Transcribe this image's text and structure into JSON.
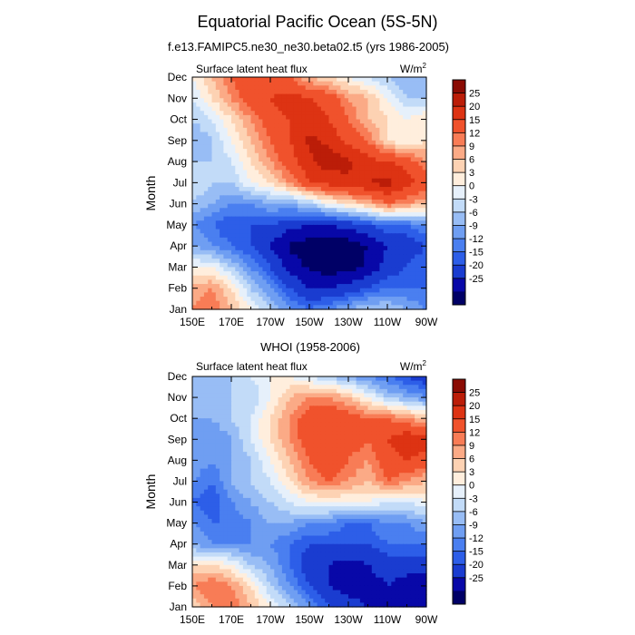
{
  "figure": {
    "title": "Equatorial Pacific Ocean (5S-5N)"
  },
  "colors": {
    "palette": [
      "#000066",
      "#0808a8",
      "#1a3cd0",
      "#2d5ee8",
      "#4a7ff0",
      "#6f9ef2",
      "#98bdf5",
      "#c2dbf8",
      "#e6f0fb",
      "#ffeedd",
      "#fdd2b3",
      "#fbaa86",
      "#f87c56",
      "#f0522c",
      "#dd3313",
      "#bb1d08",
      "#8a0b03"
    ],
    "frame": "#000000",
    "background": "#ffffff"
  },
  "chart_data": [
    {
      "type": "heatmap",
      "title": "f.e13.FAMIPC5.ne30_ne30.beta02.t5 (yrs 1986-2005)",
      "subtitle_left": "Surface latent heat flux",
      "units_base": "W/m",
      "units_sup": "2",
      "xlabel": "",
      "ylabel": "Month",
      "x_ticks": [
        "150E",
        "170E",
        "170W",
        "150W",
        "130W",
        "110W",
        "90W"
      ],
      "x_range": [
        150,
        270
      ],
      "y_ticks": [
        "Jan",
        "Feb",
        "Mar",
        "Apr",
        "May",
        "Jun",
        "Jul",
        "Aug",
        "Sep",
        "Oct",
        "Nov",
        "Dec"
      ],
      "colorbar_labels": [
        "25",
        "20",
        "15",
        "12",
        "9",
        "6",
        "3",
        "0",
        "-3",
        "-6",
        "-9",
        "-12",
        "-15",
        "-20",
        "-25"
      ],
      "levels": [
        -25,
        -20,
        -15,
        -12,
        -9,
        -6,
        -3,
        0,
        3,
        6,
        9,
        12,
        15,
        20,
        25
      ],
      "x_nodes": [
        150,
        160,
        170,
        180,
        190,
        200,
        210,
        220,
        230,
        240,
        250,
        260,
        270
      ],
      "z": [
        [
          12,
          15,
          9,
          3,
          -3,
          -9,
          -12,
          -9,
          -6,
          -3,
          -3,
          -6,
          -9
        ],
        [
          10,
          12,
          6,
          -3,
          -9,
          -15,
          -20,
          -20,
          -18,
          -15,
          -12,
          -12,
          -12
        ],
        [
          3,
          3,
          -3,
          -9,
          -15,
          -22,
          -26,
          -28,
          -27,
          -24,
          -18,
          -15,
          -12
        ],
        [
          -6,
          -9,
          -12,
          -15,
          -20,
          -26,
          -28,
          -29,
          -28,
          -25,
          -20,
          -18,
          -15
        ],
        [
          -9,
          -12,
          -15,
          -15,
          -15,
          -18,
          -20,
          -20,
          -18,
          -15,
          -12,
          -12,
          -9
        ],
        [
          -3,
          -6,
          -9,
          -9,
          -6,
          -6,
          -3,
          3,
          6,
          9,
          15,
          12,
          9
        ],
        [
          0,
          -3,
          -3,
          3,
          6,
          12,
          20,
          22,
          24,
          25,
          27,
          22,
          18
        ],
        [
          -3,
          -3,
          0,
          6,
          12,
          18,
          24,
          28,
          26,
          22,
          20,
          18,
          12
        ],
        [
          -6,
          -3,
          3,
          9,
          15,
          20,
          26,
          24,
          18,
          15,
          6,
          3,
          6
        ],
        [
          -3,
          0,
          6,
          12,
          18,
          20,
          22,
          20,
          15,
          9,
          6,
          3,
          6
        ],
        [
          0,
          6,
          12,
          18,
          20,
          22,
          20,
          18,
          12,
          9,
          3,
          -3,
          -3
        ],
        [
          3,
          9,
          15,
          20,
          18,
          15,
          9,
          6,
          3,
          0,
          -3,
          -6,
          -6
        ]
      ]
    },
    {
      "type": "heatmap",
      "title": "WHOI (1958-2006)",
      "subtitle_left": "Surface latent heat flux",
      "units_base": "W/m",
      "units_sup": "2",
      "xlabel": "",
      "ylabel": "Month",
      "x_ticks": [
        "150E",
        "170E",
        "170W",
        "150W",
        "130W",
        "110W",
        "90W"
      ],
      "x_range": [
        150,
        270
      ],
      "y_ticks": [
        "Jan",
        "Feb",
        "Mar",
        "Apr",
        "May",
        "Jun",
        "Jul",
        "Aug",
        "Sep",
        "Oct",
        "Nov",
        "Dec"
      ],
      "colorbar_labels": [
        "25",
        "20",
        "15",
        "12",
        "9",
        "6",
        "3",
        "0",
        "-3",
        "-6",
        "-9",
        "-12",
        "-15",
        "-20",
        "-25"
      ],
      "levels": [
        -25,
        -20,
        -15,
        -12,
        -9,
        -6,
        -3,
        0,
        3,
        6,
        9,
        12,
        15,
        20,
        25
      ],
      "x_nodes": [
        150,
        160,
        170,
        180,
        190,
        200,
        210,
        220,
        230,
        240,
        250,
        260,
        270
      ],
      "z": [
        [
          6,
          12,
          15,
          9,
          3,
          -3,
          -9,
          -15,
          -18,
          -20,
          -22,
          -25,
          -25
        ],
        [
          12,
          15,
          12,
          6,
          -3,
          -9,
          -15,
          -20,
          -22,
          -22,
          -20,
          -22,
          -24
        ],
        [
          6,
          6,
          3,
          -3,
          -6,
          -12,
          -18,
          -20,
          -22,
          -20,
          -18,
          -18,
          -18
        ],
        [
          -6,
          -9,
          -9,
          -9,
          -9,
          -12,
          -15,
          -15,
          -15,
          -15,
          -12,
          -12,
          -12
        ],
        [
          -9,
          -12,
          -12,
          -9,
          -6,
          -6,
          -9,
          -9,
          -12,
          -12,
          -9,
          -9,
          -6
        ],
        [
          -12,
          -15,
          -9,
          -6,
          -3,
          0,
          3,
          3,
          3,
          3,
          0,
          0,
          3
        ],
        [
          -9,
          -12,
          -6,
          -3,
          0,
          6,
          12,
          15,
          12,
          9,
          15,
          12,
          9
        ],
        [
          -6,
          -9,
          -6,
          -3,
          3,
          9,
          15,
          20,
          15,
          12,
          18,
          20,
          18
        ],
        [
          -6,
          -9,
          -6,
          0,
          6,
          12,
          18,
          20,
          18,
          15,
          20,
          24,
          22
        ],
        [
          -6,
          -6,
          -3,
          0,
          6,
          12,
          18,
          20,
          18,
          15,
          15,
          12,
          9
        ],
        [
          -6,
          -6,
          -3,
          -3,
          3,
          9,
          12,
          12,
          9,
          3,
          -3,
          -6,
          -9
        ],
        [
          -3,
          -3,
          -3,
          0,
          3,
          3,
          0,
          -3,
          -6,
          -9,
          -12,
          -15,
          -18
        ]
      ]
    }
  ]
}
